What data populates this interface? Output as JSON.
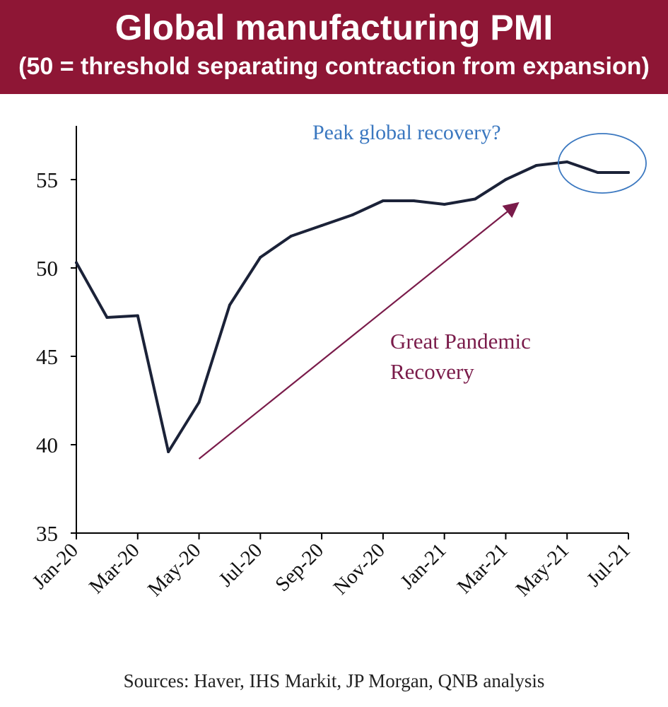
{
  "header": {
    "title": "Global manufacturing PMI",
    "subtitle": "(50 = threshold separating contraction from expansion)"
  },
  "chart_data": {
    "type": "line",
    "title": "Global manufacturing PMI",
    "subtitle": "(50 = threshold separating contraction from expansion)",
    "xlabel": "",
    "ylabel": "",
    "ylim": [
      35,
      58
    ],
    "yticks": [
      35,
      40,
      45,
      50,
      55
    ],
    "x": [
      "Jan-20",
      "Feb-20",
      "Mar-20",
      "Apr-20",
      "May-20",
      "Jun-20",
      "Jul-20",
      "Aug-20",
      "Sep-20",
      "Oct-20",
      "Nov-20",
      "Dec-20",
      "Jan-21",
      "Feb-21",
      "Mar-21",
      "Apr-21",
      "May-21",
      "Jun-21",
      "Jul-21"
    ],
    "xtick_labels": [
      "Jan-20",
      "Mar-20",
      "May-20",
      "Jul-20",
      "Sep-20",
      "Nov-20",
      "Jan-21",
      "Mar-21",
      "May-21",
      "Jul-21"
    ],
    "series": [
      {
        "name": "Global manufacturing PMI",
        "color": "#1b2238",
        "values": [
          50.3,
          47.2,
          47.3,
          39.6,
          42.4,
          47.9,
          50.6,
          51.8,
          52.4,
          53.0,
          53.8,
          53.8,
          53.6,
          53.9,
          55.0,
          55.8,
          56.0,
          55.4,
          55.4
        ]
      }
    ],
    "annotations": [
      {
        "text": "Peak global recovery?",
        "color": "#3b78c0",
        "target": "May-21 to Jul-21 peak"
      },
      {
        "text_lines": [
          "Great Pandemic",
          "Recovery"
        ],
        "color": "#7a1b4a",
        "arrow_from": [
          "May-20",
          39.2
        ],
        "arrow_to": [
          "Mar-21",
          53.8
        ]
      }
    ],
    "grid": false,
    "legend": "none"
  },
  "source": "Sources: Haver, IHS Markit, JP Morgan, QNB analysis"
}
